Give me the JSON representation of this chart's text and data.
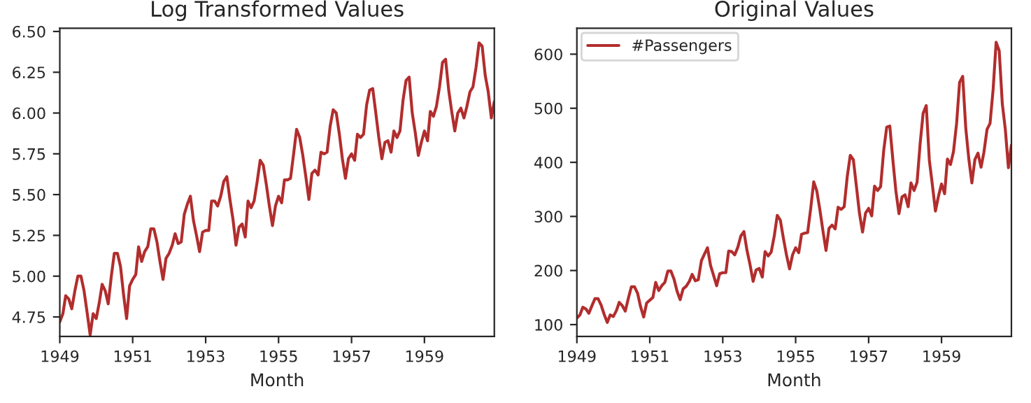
{
  "chart_data": [
    {
      "type": "line",
      "title": "Log Transformed Values",
      "xlabel": "Month",
      "xlim": [
        "1949-01",
        "1960-12"
      ],
      "xticks": [
        "1949",
        "1951",
        "1953",
        "1955",
        "1957",
        "1959"
      ],
      "ylim": [
        4.63,
        6.52
      ],
      "yticks": [
        {
          "value": 4.75,
          "label": "4.75"
        },
        {
          "value": 5.0,
          "label": "5.00"
        },
        {
          "value": 5.25,
          "label": "5.25"
        },
        {
          "value": 5.5,
          "label": "5.50"
        },
        {
          "value": 5.75,
          "label": "5.75"
        },
        {
          "value": 6.0,
          "label": "6.00"
        },
        {
          "value": 6.25,
          "label": "6.25"
        },
        {
          "value": 6.5,
          "label": "6.50"
        }
      ],
      "grid": false,
      "legend": false,
      "series": [
        {
          "color": "#b22d2d",
          "x": [
            "1949-01",
            "1949-02",
            "1949-03",
            "1949-04",
            "1949-05",
            "1949-06",
            "1949-07",
            "1949-08",
            "1949-09",
            "1949-10",
            "1949-11",
            "1949-12",
            "1950-01",
            "1950-02",
            "1950-03",
            "1950-04",
            "1950-05",
            "1950-06",
            "1950-07",
            "1950-08",
            "1950-09",
            "1950-10",
            "1950-11",
            "1950-12",
            "1951-01",
            "1951-02",
            "1951-03",
            "1951-04",
            "1951-05",
            "1951-06",
            "1951-07",
            "1951-08",
            "1951-09",
            "1951-10",
            "1951-11",
            "1951-12",
            "1952-01",
            "1952-02",
            "1952-03",
            "1952-04",
            "1952-05",
            "1952-06",
            "1952-07",
            "1952-08",
            "1952-09",
            "1952-10",
            "1952-11",
            "1952-12",
            "1953-01",
            "1953-02",
            "1953-03",
            "1953-04",
            "1953-05",
            "1953-06",
            "1953-07",
            "1953-08",
            "1953-09",
            "1953-10",
            "1953-11",
            "1953-12",
            "1954-01",
            "1954-02",
            "1954-03",
            "1954-04",
            "1954-05",
            "1954-06",
            "1954-07",
            "1954-08",
            "1954-09",
            "1954-10",
            "1954-11",
            "1954-12",
            "1955-01",
            "1955-02",
            "1955-03",
            "1955-04",
            "1955-05",
            "1955-06",
            "1955-07",
            "1955-08",
            "1955-09",
            "1955-10",
            "1955-11",
            "1955-12",
            "1956-01",
            "1956-02",
            "1956-03",
            "1956-04",
            "1956-05",
            "1956-06",
            "1956-07",
            "1956-08",
            "1956-09",
            "1956-10",
            "1956-11",
            "1956-12",
            "1957-01",
            "1957-02",
            "1957-03",
            "1957-04",
            "1957-05",
            "1957-06",
            "1957-07",
            "1957-08",
            "1957-09",
            "1957-10",
            "1957-11",
            "1957-12",
            "1958-01",
            "1958-02",
            "1958-03",
            "1958-04",
            "1958-05",
            "1958-06",
            "1958-07",
            "1958-08",
            "1958-09",
            "1958-10",
            "1958-11",
            "1958-12",
            "1959-01",
            "1959-02",
            "1959-03",
            "1959-04",
            "1959-05",
            "1959-06",
            "1959-07",
            "1959-08",
            "1959-09",
            "1959-10",
            "1959-11",
            "1959-12",
            "1960-01",
            "1960-02",
            "1960-03",
            "1960-04",
            "1960-05",
            "1960-06",
            "1960-07",
            "1960-08",
            "1960-09",
            "1960-10",
            "1960-11",
            "1960-12"
          ],
          "values": [
            4.72,
            4.77,
            4.88,
            4.86,
            4.8,
            4.91,
            5.0,
            5.0,
            4.91,
            4.78,
            4.64,
            4.77,
            4.74,
            4.84,
            4.95,
            4.91,
            4.83,
            5.0,
            5.14,
            5.14,
            5.06,
            4.89,
            4.74,
            4.94,
            4.98,
            5.01,
            5.18,
            5.09,
            5.15,
            5.18,
            5.29,
            5.29,
            5.21,
            5.09,
            4.98,
            5.11,
            5.14,
            5.19,
            5.26,
            5.2,
            5.21,
            5.38,
            5.44,
            5.49,
            5.34,
            5.25,
            5.15,
            5.27,
            5.28,
            5.28,
            5.46,
            5.46,
            5.43,
            5.49,
            5.58,
            5.61,
            5.47,
            5.35,
            5.19,
            5.3,
            5.32,
            5.24,
            5.46,
            5.42,
            5.46,
            5.58,
            5.71,
            5.68,
            5.56,
            5.43,
            5.31,
            5.43,
            5.49,
            5.45,
            5.59,
            5.59,
            5.6,
            5.75,
            5.9,
            5.85,
            5.74,
            5.61,
            5.47,
            5.63,
            5.65,
            5.62,
            5.76,
            5.75,
            5.76,
            5.92,
            6.02,
            6.0,
            5.87,
            5.72,
            5.6,
            5.72,
            5.75,
            5.71,
            5.87,
            5.85,
            5.87,
            6.05,
            6.14,
            6.15,
            6.0,
            5.85,
            5.72,
            5.82,
            5.83,
            5.76,
            5.89,
            5.85,
            5.89,
            6.08,
            6.2,
            6.22,
            6.0,
            5.88,
            5.74,
            5.82,
            5.89,
            5.83,
            6.01,
            5.98,
            6.04,
            6.16,
            6.31,
            6.33,
            6.14,
            6.01,
            5.89,
            6.0,
            6.03,
            5.97,
            6.04,
            6.13,
            6.16,
            6.28,
            6.43,
            6.41,
            6.23,
            6.13,
            5.97,
            6.07
          ]
        }
      ]
    },
    {
      "type": "line",
      "title": "Original Values",
      "xlabel": "Month",
      "xlim": [
        "1949-01",
        "1960-12"
      ],
      "xticks": [
        "1949",
        "1951",
        "1953",
        "1955",
        "1957",
        "1959"
      ],
      "ylim": [
        78,
        648
      ],
      "yticks": [
        100,
        200,
        300,
        400,
        500,
        600
      ],
      "grid": false,
      "legend": "top left",
      "series": [
        {
          "name": "#Passengers",
          "color": "#b22d2d",
          "x": [
            "1949-01",
            "1949-02",
            "1949-03",
            "1949-04",
            "1949-05",
            "1949-06",
            "1949-07",
            "1949-08",
            "1949-09",
            "1949-10",
            "1949-11",
            "1949-12",
            "1950-01",
            "1950-02",
            "1950-03",
            "1950-04",
            "1950-05",
            "1950-06",
            "1950-07",
            "1950-08",
            "1950-09",
            "1950-10",
            "1950-11",
            "1950-12",
            "1951-01",
            "1951-02",
            "1951-03",
            "1951-04",
            "1951-05",
            "1951-06",
            "1951-07",
            "1951-08",
            "1951-09",
            "1951-10",
            "1951-11",
            "1951-12",
            "1952-01",
            "1952-02",
            "1952-03",
            "1952-04",
            "1952-05",
            "1952-06",
            "1952-07",
            "1952-08",
            "1952-09",
            "1952-10",
            "1952-11",
            "1952-12",
            "1953-01",
            "1953-02",
            "1953-03",
            "1953-04",
            "1953-05",
            "1953-06",
            "1953-07",
            "1953-08",
            "1953-09",
            "1953-10",
            "1953-11",
            "1953-12",
            "1954-01",
            "1954-02",
            "1954-03",
            "1954-04",
            "1954-05",
            "1954-06",
            "1954-07",
            "1954-08",
            "1954-09",
            "1954-10",
            "1954-11",
            "1954-12",
            "1955-01",
            "1955-02",
            "1955-03",
            "1955-04",
            "1955-05",
            "1955-06",
            "1955-07",
            "1955-08",
            "1955-09",
            "1955-10",
            "1955-11",
            "1955-12",
            "1956-01",
            "1956-02",
            "1956-03",
            "1956-04",
            "1956-05",
            "1956-06",
            "1956-07",
            "1956-08",
            "1956-09",
            "1956-10",
            "1956-11",
            "1956-12",
            "1957-01",
            "1957-02",
            "1957-03",
            "1957-04",
            "1957-05",
            "1957-06",
            "1957-07",
            "1957-08",
            "1957-09",
            "1957-10",
            "1957-11",
            "1957-12",
            "1958-01",
            "1958-02",
            "1958-03",
            "1958-04",
            "1958-05",
            "1958-06",
            "1958-07",
            "1958-08",
            "1958-09",
            "1958-10",
            "1958-11",
            "1958-12",
            "1959-01",
            "1959-02",
            "1959-03",
            "1959-04",
            "1959-05",
            "1959-06",
            "1959-07",
            "1959-08",
            "1959-09",
            "1959-10",
            "1959-11",
            "1959-12",
            "1960-01",
            "1960-02",
            "1960-03",
            "1960-04",
            "1960-05",
            "1960-06",
            "1960-07",
            "1960-08",
            "1960-09",
            "1960-10",
            "1960-11",
            "1960-12"
          ],
          "values": [
            112,
            118,
            132,
            129,
            121,
            135,
            148,
            148,
            136,
            119,
            104,
            118,
            115,
            126,
            141,
            135,
            125,
            149,
            170,
            170,
            158,
            133,
            114,
            140,
            145,
            150,
            178,
            163,
            172,
            178,
            199,
            199,
            184,
            162,
            146,
            166,
            171,
            180,
            193,
            181,
            183,
            218,
            230,
            242,
            209,
            191,
            172,
            194,
            196,
            196,
            236,
            235,
            229,
            243,
            264,
            272,
            237,
            211,
            180,
            201,
            204,
            188,
            235,
            227,
            234,
            264,
            302,
            293,
            259,
            229,
            203,
            229,
            242,
            233,
            267,
            269,
            270,
            315,
            364,
            347,
            312,
            274,
            237,
            278,
            284,
            277,
            317,
            313,
            318,
            374,
            413,
            405,
            355,
            306,
            271,
            306,
            315,
            301,
            356,
            348,
            355,
            422,
            465,
            467,
            404,
            347,
            305,
            336,
            340,
            318,
            362,
            348,
            363,
            435,
            491,
            505,
            404,
            359,
            310,
            337,
            360,
            342,
            406,
            396,
            420,
            472,
            548,
            559,
            463,
            407,
            362,
            405,
            417,
            391,
            419,
            461,
            472,
            535,
            622,
            606,
            508,
            461,
            390,
            432
          ]
        }
      ]
    }
  ]
}
